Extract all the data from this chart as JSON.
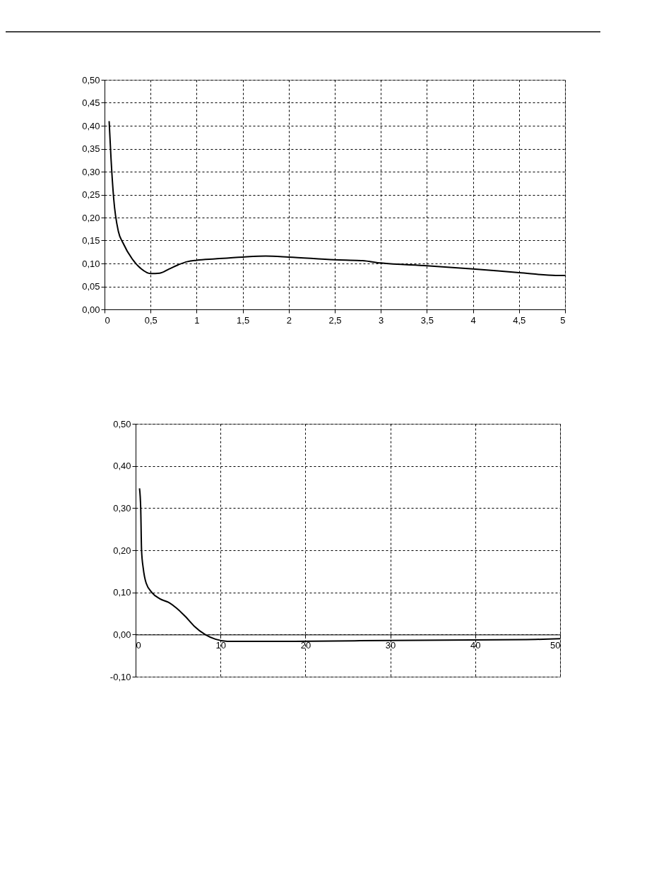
{
  "chart_data": [
    {
      "type": "line",
      "x": [
        0.05,
        0.07,
        0.1,
        0.15,
        0.2,
        0.3,
        0.4,
        0.5,
        0.6,
        0.7,
        0.8,
        0.9,
        1.0,
        1.2,
        1.5,
        1.75,
        2.0,
        2.5,
        2.8,
        3.0,
        3.5,
        4.0,
        4.5,
        4.9,
        5.0
      ],
      "series": [
        {
          "color": "#000000",
          "values": [
            0.41,
            0.33,
            0.24,
            0.17,
            0.145,
            0.11,
            0.088,
            0.078,
            0.079,
            0.088,
            0.097,
            0.104,
            0.107,
            0.11,
            0.114,
            0.116,
            0.114,
            0.108,
            0.106,
            0.101,
            0.095,
            0.088,
            0.08,
            0.074,
            0.074
          ]
        }
      ],
      "xlim": [
        0,
        5
      ],
      "xticks": [
        0,
        {
          "value": 0.5,
          "label": "0,5"
        },
        1,
        {
          "value": 1.5,
          "label": "1,5"
        },
        2,
        {
          "value": 2.5,
          "label": "2,5"
        },
        3,
        {
          "value": 3.5,
          "label": "3,5"
        },
        4,
        {
          "value": 4.5,
          "label": "4,5"
        },
        5
      ],
      "ylim": [
        0,
        0.5
      ],
      "yticks": [
        {
          "value": 0,
          "label": "0,00"
        },
        {
          "value": 0.05,
          "label": "0,05"
        },
        {
          "value": 0.1,
          "label": "0,10"
        },
        {
          "value": 0.15,
          "label": "0,15"
        },
        {
          "value": 0.2,
          "label": "0,20"
        },
        {
          "value": 0.25,
          "label": "0,25"
        },
        {
          "value": 0.3,
          "label": "0,30"
        },
        {
          "value": 0.35,
          "label": "0,35"
        },
        {
          "value": 0.4,
          "label": "0,40"
        },
        {
          "value": 0.45,
          "label": "0,45"
        },
        {
          "value": 0.5,
          "label": "0,50"
        }
      ],
      "grid": true,
      "marker": "none",
      "line_style": "solid"
    },
    {
      "type": "line",
      "x": [
        0.46,
        0.6,
        0.7,
        0.9,
        1.24,
        1.95,
        2.84,
        3.9,
        4.8,
        5.9,
        6.9,
        8.2,
        9.4,
        10.8,
        18.3,
        29.8,
        46,
        50
      ],
      "series": [
        {
          "color": "#000000",
          "values": [
            0.347,
            0.3,
            0.2,
            0.157,
            0.122,
            0.099,
            0.085,
            0.076,
            0.063,
            0.042,
            0.02,
            0.0,
            -0.011,
            -0.016,
            -0.016,
            -0.014,
            -0.012,
            -0.01
          ]
        }
      ],
      "xlim": [
        0,
        50
      ],
      "xticks": [
        0,
        10,
        20,
        30,
        40,
        50
      ],
      "ylim": [
        -0.1,
        0.5
      ],
      "yticks": [
        {
          "value": -0.1,
          "label": "-0,10"
        },
        {
          "value": 0,
          "label": "0,00"
        },
        {
          "value": 0.1,
          "label": "0,10"
        },
        {
          "value": 0.2,
          "label": "0,20"
        },
        {
          "value": 0.3,
          "label": "0,30"
        },
        {
          "value": 0.4,
          "label": "0,40"
        },
        {
          "value": 0.5,
          "label": "0,50"
        }
      ],
      "grid": true,
      "marker": "none",
      "line_style": "solid"
    }
  ]
}
